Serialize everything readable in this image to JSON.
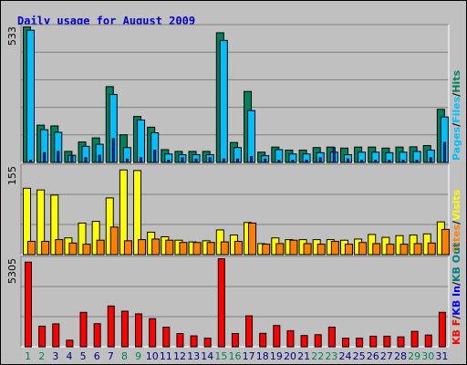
{
  "title": "Daily usage for August 2009",
  "colors": {
    "hits": "#00805c",
    "files": "#00bfff",
    "pages": "#0040ff",
    "visits": "#ffff00",
    "sites": "#ff8000",
    "kb_in": "#008080",
    "kb_out": "#0000ff",
    "kb_f": "#ff0000",
    "weekend_day": "#00805c",
    "weekday": "#000080"
  },
  "chart_data": [
    {
      "type": "bar",
      "name": "hits-files-pages",
      "max_label": "533",
      "legend": [
        "Pages",
        "Files",
        "Hits"
      ],
      "legend_separators": [
        "/",
        "/"
      ],
      "categories": [
        "1",
        "2",
        "3",
        "4",
        "5",
        "6",
        "7",
        "8",
        "9",
        "10",
        "11",
        "12",
        "13",
        "14",
        "15",
        "16",
        "17",
        "18",
        "19",
        "20",
        "21",
        "22",
        "23",
        "24",
        "25",
        "26",
        "27",
        "28",
        "29",
        "30",
        "31"
      ],
      "ylim": [
        0,
        533
      ],
      "series": [
        {
          "name": "Hits",
          "values": [
            533,
            148,
            145,
            45,
            82,
            98,
            299,
            110,
            182,
            140,
            52,
            45,
            45,
            45,
            510,
            80,
            280,
            42,
            62,
            50,
            50,
            60,
            62,
            58,
            62,
            62,
            58,
            62,
            63,
            68,
            210
          ]
        },
        {
          "name": "Files",
          "values": [
            520,
            130,
            120,
            30,
            65,
            73,
            268,
            60,
            168,
            118,
            35,
            32,
            32,
            32,
            480,
            60,
            205,
            28,
            52,
            35,
            35,
            40,
            42,
            32,
            42,
            42,
            40,
            42,
            45,
            50,
            180
          ]
        },
        {
          "name": "Pages",
          "values": [
            10,
            40,
            45,
            30,
            20,
            30,
            95,
            15,
            20,
            50,
            10,
            20,
            15,
            20,
            15,
            15,
            25,
            15,
            10,
            10,
            10,
            20,
            60,
            15,
            10,
            10,
            10,
            10,
            10,
            20,
            80
          ]
        }
      ]
    },
    {
      "type": "bar",
      "name": "visits-sites",
      "max_label": "155",
      "legend": [
        "Sites",
        "Visits"
      ],
      "legend_separators": [
        "/"
      ],
      "categories": [
        "1",
        "2",
        "3",
        "4",
        "5",
        "6",
        "7",
        "8",
        "9",
        "10",
        "11",
        "12",
        "13",
        "14",
        "15",
        "16",
        "17",
        "18",
        "19",
        "20",
        "21",
        "22",
        "23",
        "24",
        "25",
        "26",
        "27",
        "28",
        "29",
        "30",
        "31"
      ],
      "ylim": [
        0,
        155
      ],
      "series": [
        {
          "name": "Visits",
          "values": [
            117,
            114,
            105,
            30,
            56,
            59,
            100,
            149,
            148,
            40,
            32,
            26,
            23,
            25,
            44,
            35,
            57,
            20,
            30,
            27,
            27,
            27,
            27,
            26,
            28,
            36,
            31,
            34,
            35,
            37,
            58
          ]
        },
        {
          "name": "Sites",
          "values": [
            24,
            24,
            27,
            21,
            19,
            26,
            49,
            25,
            27,
            28,
            26,
            22,
            22,
            22,
            23,
            24,
            56,
            19,
            20,
            26,
            20,
            19,
            24,
            19,
            22,
            20,
            19,
            19,
            20,
            21,
            45
          ]
        }
      ]
    },
    {
      "type": "bar",
      "name": "kbytes",
      "max_label": "5305",
      "legend": [
        "KB F",
        "KB In",
        "KB Out"
      ],
      "legend_separators": [
        "/",
        "/"
      ],
      "categories": [
        "1",
        "2",
        "3",
        "4",
        "5",
        "6",
        "7",
        "8",
        "9",
        "10",
        "11",
        "12",
        "13",
        "14",
        "15",
        "16",
        "17",
        "18",
        "19",
        "20",
        "21",
        "22",
        "23",
        "24",
        "25",
        "26",
        "27",
        "28",
        "29",
        "30",
        "31"
      ],
      "ylim": [
        0,
        5305
      ],
      "series": [
        {
          "name": "KB F",
          "values": [
            5100,
            1260,
            1400,
            420,
            2090,
            1410,
            2470,
            2160,
            2000,
            1710,
            1200,
            820,
            680,
            540,
            5305,
            820,
            1880,
            830,
            1300,
            990,
            700,
            750,
            1200,
            540,
            540,
            660,
            660,
            620,
            950,
            730,
            2090
          ]
        }
      ]
    }
  ]
}
